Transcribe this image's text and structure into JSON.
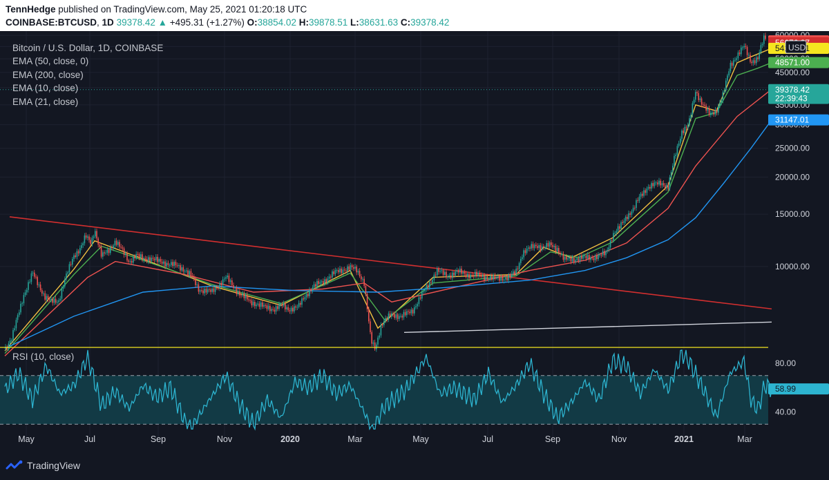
{
  "header": {
    "author": "TennHedge",
    "published": "published on TradingView.com, May 25, 2021 01:20:18 UTC",
    "symbol": "COINBASE:BTCUSD",
    "interval": "1D",
    "last": "39378.42",
    "change_arrow": "▲",
    "change": "+495.31 (+1.27%)",
    "o_label": "O:",
    "o": "38854.02",
    "h_label": "H:",
    "h": "39878.51",
    "l_label": "L:",
    "l": "38631.63",
    "c_label": "C:",
    "c": "39378.42"
  },
  "legend": [
    "Bitcoin / U.S. Dollar, 1D, COINBASE",
    "EMA (50, close, 0)",
    "EMA (200, close)",
    "EMA (10, close)",
    "EMA (21, close)"
  ],
  "footer": {
    "brand": "TradingView"
  },
  "colors": {
    "background": "#131722",
    "grid": "#1e2230",
    "up": "#26a69a",
    "down": "#ef5350",
    "ema10": "#f5c242",
    "ema21": "#4caf50",
    "ema50": "#ef5350",
    "ema200": "#2196f3",
    "trendline": "#d32f2f",
    "support": "#d1d4dc",
    "rsi": "#2db4d0",
    "rsi_band": "#123a45"
  },
  "chart_data": [
    {
      "type": "candlestick",
      "title": "Bitcoin / U.S. Dollar, 1D, COINBASE",
      "currency": "USD",
      "yscale": "log",
      "ylim": [
        5400,
        62000
      ],
      "y_ticks": [
        "10000.00",
        "15000.00",
        "20000.00",
        "25000.00",
        "30000.00",
        "35000.00",
        "40000.00",
        "45000.00",
        "50000.00",
        "55000.00",
        "60000.00"
      ],
      "x_ticks": [
        "May",
        "Jul",
        "Sep",
        "Nov",
        "2020",
        "Mar",
        "May",
        "Jul",
        "Sep",
        "Nov",
        "2021",
        "Mar"
      ],
      "grid": true,
      "price_labels": [
        {
          "text": "57500.95",
          "color": "#ef5350",
          "value": 57500.95
        },
        {
          "text": "56676.87",
          "color": "#d32f2f",
          "value": 56676.87
        },
        {
          "text": "54226.81",
          "color": "#f5e51f",
          "value": 54226.81
        },
        {
          "text": "48571.00",
          "color": "#4caf50",
          "value": 48571.0
        },
        {
          "text": "39378.42",
          "color": "#26a69a",
          "value": 39378.42
        },
        {
          "text": "22:39:43",
          "color": "#26a69a",
          "value": 36800
        },
        {
          "text": "31147.01",
          "color": "#2196f3",
          "value": 31147.01
        }
      ],
      "series": [
        {
          "name": "Bitcoin / U.S. Dollar, 1D, COINBASE",
          "type": "candle",
          "points": [
            [
              0,
              5300
            ],
            [
              10,
              5700
            ],
            [
              20,
              7000
            ],
            [
              27,
              8000
            ],
            [
              35,
              8800
            ],
            [
              40,
              9500
            ],
            [
              50,
              8600
            ],
            [
              58,
              7900
            ],
            [
              66,
              7600
            ],
            [
              78,
              7700
            ],
            [
              86,
              8900
            ],
            [
              100,
              10900
            ],
            [
              110,
              11600
            ],
            [
              117,
              12600
            ],
            [
              125,
              12000
            ],
            [
              130,
              13400
            ],
            [
              140,
              10800
            ],
            [
              150,
              11300
            ],
            [
              160,
              12200
            ],
            [
              170,
              11300
            ],
            [
              180,
              10400
            ],
            [
              190,
              10900
            ],
            [
              200,
              10600
            ],
            [
              210,
              10700
            ],
            [
              222,
              10400
            ],
            [
              232,
              10300
            ],
            [
              245,
              10100
            ],
            [
              260,
              9800
            ],
            [
              270,
              9300
            ],
            [
              280,
              8400
            ],
            [
              290,
              8300
            ],
            [
              300,
              8200
            ],
            [
              310,
              8700
            ],
            [
              320,
              9200
            ],
            [
              330,
              8600
            ],
            [
              340,
              8100
            ],
            [
              355,
              7600
            ],
            [
              365,
              7500
            ],
            [
              375,
              7300
            ],
            [
              390,
              7200
            ],
            [
              400,
              7400
            ],
            [
              410,
              7200
            ],
            [
              425,
              7300
            ],
            [
              435,
              8000
            ],
            [
              445,
              8500
            ],
            [
              460,
              8900
            ],
            [
              480,
              9600
            ],
            [
              490,
              9800
            ],
            [
              500,
              9900
            ],
            [
              510,
              9700
            ],
            [
              520,
              8900
            ],
            [
              530,
              5600
            ],
            [
              536,
              5300
            ],
            [
              545,
              6400
            ],
            [
              560,
              6900
            ],
            [
              575,
              6800
            ],
            [
              590,
              7100
            ],
            [
              600,
              7800
            ],
            [
              615,
              8800
            ],
            [
              625,
              9700
            ],
            [
              640,
              9300
            ],
            [
              655,
              9600
            ],
            [
              670,
              9400
            ],
            [
              690,
              9300
            ],
            [
              710,
              9100
            ],
            [
              730,
              9200
            ],
            [
              740,
              9600
            ],
            [
              750,
              11200
            ],
            [
              760,
              11500
            ],
            [
              770,
              11800
            ],
            [
              780,
              11600
            ],
            [
              790,
              11800
            ],
            [
              800,
              11500
            ],
            [
              810,
              10500
            ],
            [
              820,
              10600
            ],
            [
              840,
              10700
            ],
            [
              860,
              10800
            ],
            [
              870,
              11100
            ],
            [
              880,
              12800
            ],
            [
              890,
              13500
            ],
            [
              900,
              14800
            ],
            [
              910,
              15600
            ],
            [
              920,
              17300
            ],
            [
              930,
              18500
            ],
            [
              940,
              18800
            ],
            [
              950,
              19200
            ],
            [
              960,
              18500
            ],
            [
              970,
              23500
            ],
            [
              980,
              28600
            ],
            [
              990,
              30000
            ],
            [
              1000,
              39000
            ],
            [
              1010,
              35300
            ],
            [
              1020,
              32300
            ],
            [
              1030,
              33600
            ],
            [
              1040,
              38000
            ],
            [
              1050,
              47500
            ],
            [
              1060,
              51500
            ],
            [
              1070,
              55000
            ],
            [
              1080,
              49000
            ],
            [
              1090,
              50200
            ],
            [
              1095,
              55000
            ],
            [
              1100,
              59500
            ],
            [
              1103,
              57500
            ]
          ]
        },
        {
          "name": "EMA (10, close)",
          "type": "line",
          "points": [
            [
              0,
              5200
            ],
            [
              100,
              9800
            ],
            [
              130,
              12200
            ],
            [
              200,
              10600
            ],
            [
              300,
              8600
            ],
            [
              400,
              7400
            ],
            [
              500,
              9700
            ],
            [
              540,
              6200
            ],
            [
              620,
              9200
            ],
            [
              740,
              9400
            ],
            [
              780,
              11600
            ],
            [
              820,
              10700
            ],
            [
              880,
              12500
            ],
            [
              960,
              18700
            ],
            [
              1000,
              35000
            ],
            [
              1030,
              33400
            ],
            [
              1060,
              48500
            ],
            [
              1080,
              50800
            ],
            [
              1110,
              54226
            ]
          ]
        },
        {
          "name": "EMA (21, close)",
          "type": "line",
          "points": [
            [
              0,
              5100
            ],
            [
              100,
              9400
            ],
            [
              140,
              11700
            ],
            [
              200,
              10500
            ],
            [
              300,
              8700
            ],
            [
              400,
              7500
            ],
            [
              500,
              9500
            ],
            [
              550,
              6600
            ],
            [
              620,
              8800
            ],
            [
              740,
              9300
            ],
            [
              790,
              11200
            ],
            [
              830,
              10700
            ],
            [
              880,
              12100
            ],
            [
              960,
              17800
            ],
            [
              1000,
              31500
            ],
            [
              1030,
              33000
            ],
            [
              1060,
              44000
            ],
            [
              1090,
              46500
            ],
            [
              1110,
              48571
            ]
          ]
        },
        {
          "name": "EMA (50, close, 0)",
          "type": "line",
          "points": [
            [
              0,
              5000
            ],
            [
              120,
              9200
            ],
            [
              160,
              10400
            ],
            [
              260,
              9400
            ],
            [
              360,
              8200
            ],
            [
              460,
              8400
            ],
            [
              520,
              8800
            ],
            [
              560,
              7600
            ],
            [
              660,
              8600
            ],
            [
              760,
              9700
            ],
            [
              840,
              10500
            ],
            [
              900,
              12000
            ],
            [
              960,
              15700
            ],
            [
              1000,
              21800
            ],
            [
              1060,
              32000
            ],
            [
              1110,
              39500
            ]
          ]
        },
        {
          "name": "EMA (200, close)",
          "type": "line",
          "points": [
            [
              0,
              5300
            ],
            [
              100,
              6800
            ],
            [
              200,
              8200
            ],
            [
              300,
              8600
            ],
            [
              420,
              8300
            ],
            [
              540,
              8200
            ],
            [
              640,
              8500
            ],
            [
              760,
              9000
            ],
            [
              840,
              9700
            ],
            [
              900,
              10700
            ],
            [
              960,
              12300
            ],
            [
              1000,
              14600
            ],
            [
              1040,
              19000
            ],
            [
              1080,
              25000
            ],
            [
              1110,
              31147
            ]
          ]
        }
      ],
      "trendline": {
        "start": [
          7,
          14700
        ],
        "end": [
          1110,
          7200
        ]
      },
      "support_line": {
        "start": [
          578,
          6000
        ],
        "end": [
          1110,
          6500
        ]
      }
    },
    {
      "type": "line",
      "title": "RSI (10, close)",
      "ylim": [
        25,
        92
      ],
      "y_ticks": [
        "40.00",
        "80.00"
      ],
      "bands": [
        30,
        70
      ],
      "last_value": "58.99",
      "series": [
        {
          "name": "RSI (10, close)",
          "points": [
            [
              0,
              58
            ],
            [
              20,
              72
            ],
            [
              40,
              50
            ],
            [
              60,
              78
            ],
            [
              80,
              55
            ],
            [
              100,
              62
            ],
            [
              120,
              85
            ],
            [
              140,
              45
            ],
            [
              160,
              57
            ],
            [
              180,
              43
            ],
            [
              200,
              62
            ],
            [
              220,
              52
            ],
            [
              240,
              60
            ],
            [
              260,
              33
            ],
            [
              270,
              27
            ],
            [
              290,
              45
            ],
            [
              320,
              70
            ],
            [
              340,
              46
            ],
            [
              360,
              30
            ],
            [
              380,
              50
            ],
            [
              400,
              35
            ],
            [
              420,
              65
            ],
            [
              440,
              60
            ],
            [
              460,
              70
            ],
            [
              480,
              55
            ],
            [
              500,
              62
            ],
            [
              520,
              40
            ],
            [
              532,
              25
            ],
            [
              550,
              45
            ],
            [
              580,
              58
            ],
            [
              610,
              85
            ],
            [
              630,
              55
            ],
            [
              650,
              60
            ],
            [
              680,
              50
            ],
            [
              700,
              72
            ],
            [
              720,
              48
            ],
            [
              740,
              62
            ],
            [
              760,
              80
            ],
            [
              780,
              55
            ],
            [
              800,
              35
            ],
            [
              820,
              48
            ],
            [
              840,
              65
            ],
            [
              860,
              50
            ],
            [
              880,
              82
            ],
            [
              900,
              78
            ],
            [
              920,
              55
            ],
            [
              940,
              75
            ],
            [
              960,
              58
            ],
            [
              980,
              88
            ],
            [
              990,
              82
            ],
            [
              1010,
              60
            ],
            [
              1030,
              36
            ],
            [
              1050,
              72
            ],
            [
              1070,
              82
            ],
            [
              1080,
              50
            ],
            [
              1090,
              42
            ],
            [
              1100,
              62
            ],
            [
              1110,
              59
            ]
          ]
        }
      ]
    }
  ]
}
